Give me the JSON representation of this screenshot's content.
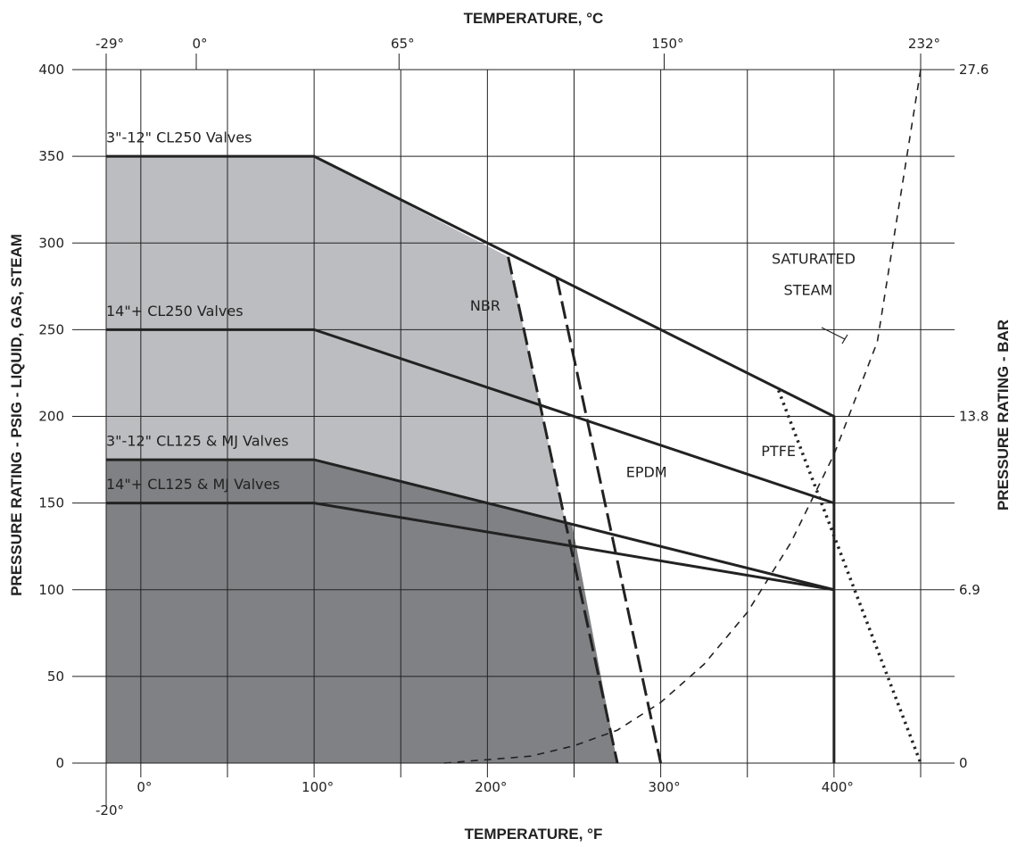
{
  "chart_data": {
    "type": "line",
    "title": "",
    "xlabel": "TEMPERATURE, °F",
    "x2label": "TEMPERATURE, °C",
    "ylabel": "PRESSURE RATING - PSIG - LIQUID, GAS, STEAM",
    "y2label": "PRESSURE RATING - BAR",
    "xlim": [
      -20,
      450
    ],
    "ylim": [
      0,
      400
    ],
    "grid": true,
    "x_ticks_bottom": [
      {
        "value": -20,
        "label": "-20°"
      },
      {
        "value": 0,
        "label": "0°"
      },
      {
        "value": 100,
        "label": "100°"
      },
      {
        "value": 200,
        "label": "200°"
      },
      {
        "value": 300,
        "label": "300°"
      },
      {
        "value": 400,
        "label": "400°"
      }
    ],
    "x_ticks_top": [
      {
        "value": -20,
        "label": "-29°"
      },
      {
        "value": 32,
        "label": "0°"
      },
      {
        "value": 149,
        "label": "65°"
      },
      {
        "value": 302,
        "label": "150°"
      },
      {
        "value": 450,
        "label": "232°"
      }
    ],
    "y_ticks_left": [
      {
        "value": 0,
        "label": "0"
      },
      {
        "value": 50,
        "label": "50"
      },
      {
        "value": 100,
        "label": "100"
      },
      {
        "value": 150,
        "label": "150"
      },
      {
        "value": 200,
        "label": "200"
      },
      {
        "value": 250,
        "label": "250"
      },
      {
        "value": 300,
        "label": "300"
      },
      {
        "value": 350,
        "label": "350"
      },
      {
        "value": 400,
        "label": "400"
      }
    ],
    "y_ticks_right": [
      {
        "value": 0,
        "label": "0"
      },
      {
        "value": 100,
        "label": "6.9"
      },
      {
        "value": 200,
        "label": "13.8"
      },
      {
        "value": 400,
        "label": "27.6"
      }
    ],
    "regions": [
      {
        "name": "NBR",
        "color": "#bcbdc0",
        "points": [
          [
            -20,
            0
          ],
          [
            -20,
            350
          ],
          [
            100,
            350
          ],
          [
            212,
            292
          ],
          [
            275,
            0
          ]
        ]
      },
      {
        "name": "CL125",
        "color": "#808184",
        "points": [
          [
            -20,
            0
          ],
          [
            -20,
            175
          ],
          [
            100,
            175
          ],
          [
            249,
            137
          ],
          [
            275,
            0
          ]
        ]
      }
    ],
    "series": [
      {
        "name": "3\"-12\" CL250 Valves",
        "style": "solid",
        "x": [
          -20,
          100,
          400,
          400
        ],
        "y": [
          350,
          350,
          200,
          0
        ]
      },
      {
        "name": "14\"+ CL250 Valves",
        "style": "solid",
        "x": [
          -20,
          100,
          400
        ],
        "y": [
          250,
          250,
          150
        ]
      },
      {
        "name": "3\"-12\" CL125 & MJ Valves",
        "style": "solid",
        "x": [
          -20,
          100,
          400
        ],
        "y": [
          175,
          175,
          100
        ]
      },
      {
        "name": "14\"+ CL125 & MJ Valves",
        "style": "solid",
        "x": [
          -20,
          100,
          400
        ],
        "y": [
          150,
          150,
          100
        ]
      },
      {
        "name": "NBR",
        "style": "dashed",
        "x": [
          212,
          275
        ],
        "y": [
          292,
          0
        ]
      },
      {
        "name": "EPDM",
        "style": "dashed",
        "x": [
          240,
          300
        ],
        "y": [
          280,
          0
        ]
      },
      {
        "name": "PTFE",
        "style": "dotted",
        "x": [
          368,
          450
        ],
        "y": [
          215,
          0
        ]
      },
      {
        "name": "SATURATED STEAM",
        "style": "thin-dashed",
        "x": [
          175,
          200,
          225,
          250,
          275,
          300,
          325,
          350,
          375,
          400,
          425,
          450
        ],
        "y": [
          0,
          2,
          4,
          10,
          19,
          35,
          57,
          87,
          127,
          178,
          243,
          400
        ]
      }
    ],
    "annotations": [
      {
        "text": "3\"-12\" CL250 Valves",
        "at": [
          -20,
          358
        ]
      },
      {
        "text": "14\"+ CL250 Valves",
        "at": [
          -20,
          258
        ]
      },
      {
        "text": "3\"-12\" CL125 & MJ Valves",
        "at": [
          -20,
          183
        ]
      },
      {
        "text": "14\"+ CL125 & MJ Valves",
        "at": [
          -20,
          158
        ]
      },
      {
        "text": "NBR",
        "at": [
          190,
          261
        ]
      },
      {
        "text": "EPDM",
        "at": [
          280,
          165
        ]
      },
      {
        "text": "PTFE",
        "at": [
          358,
          177
        ]
      },
      {
        "text": "SATURATED",
        "at": [
          364,
          288
        ]
      },
      {
        "text": "STEAM",
        "at": [
          371,
          270
        ]
      }
    ],
    "colors": {
      "light_fill": "#bcbdc0",
      "dark_fill": "#808184",
      "line": "#222222"
    }
  }
}
